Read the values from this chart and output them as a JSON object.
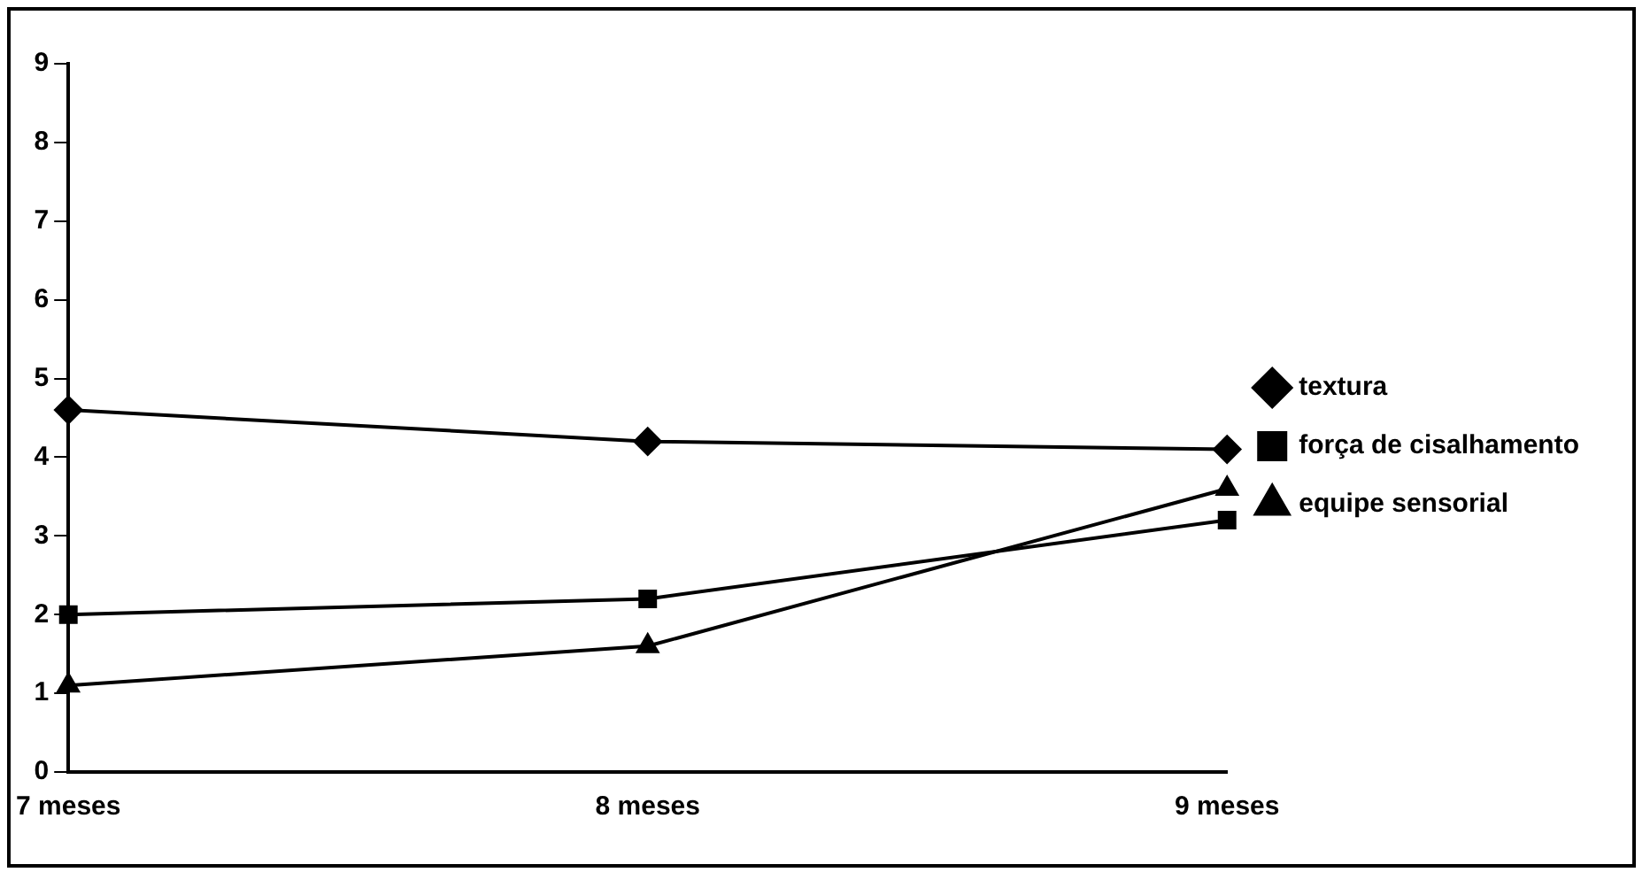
{
  "chart_data": {
    "type": "line",
    "categories": [
      "7 meses",
      "8 meses",
      "9 meses"
    ],
    "series": [
      {
        "name": "textura",
        "color": "#000000",
        "marker": "diamond",
        "values": [
          4.6,
          4.2,
          4.1
        ]
      },
      {
        "name": "força de cisalhamento",
        "color": "#000000",
        "marker": "square",
        "values": [
          2.0,
          2.2,
          3.2
        ]
      },
      {
        "name": "equipe sensorial",
        "color": "#000000",
        "marker": "triangle",
        "values": [
          1.1,
          1.6,
          3.6
        ]
      }
    ],
    "ylim": [
      0,
      9
    ],
    "yticks": [
      0,
      1,
      2,
      3,
      4,
      5,
      6,
      7,
      8,
      9
    ],
    "grid": false,
    "legend": "right",
    "line_style": "solid"
  }
}
